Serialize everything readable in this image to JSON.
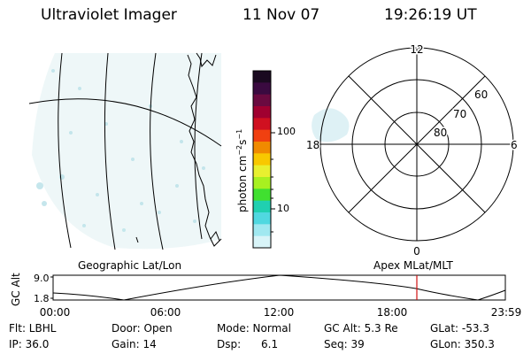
{
  "header": {
    "title": "Ultraviolet Imager",
    "date": "11 Nov 07",
    "time": "19:26:19 UT"
  },
  "colorbar": {
    "label": "photon cm",
    "label_sup1": "−2",
    "label_mid": "s",
    "label_sup2": "−1",
    "ticks": [
      "100",
      "10"
    ],
    "colors": [
      "#1a0a20",
      "#3a0a40",
      "#6a0a40",
      "#a00030",
      "#d01020",
      "#f04010",
      "#f08a00",
      "#f8c800",
      "#e8f030",
      "#a8f020",
      "#40e030",
      "#20d0b0",
      "#50d8e0",
      "#a0e8f0",
      "#d8f4f8"
    ]
  },
  "map_left": {
    "caption": "Geographic Lat/Lon"
  },
  "polar_right": {
    "caption": "Apex  MLat/MLT",
    "mlt_labels": {
      "top": "12",
      "left": "18",
      "right": "6",
      "bottom": "0"
    },
    "lat_labels": [
      "60",
      "70",
      "80"
    ]
  },
  "orbit_plot": {
    "ylabel": "GC Alt",
    "y_ticks": [
      "9.0",
      "1.8"
    ],
    "x_ticks": [
      "00:00",
      "06:00",
      "12:00",
      "18:00",
      "23:59"
    ],
    "marker_color": "#d01010"
  },
  "info": {
    "flt": "Flt: LBHL",
    "door": "Door: Open",
    "mode": "Mode: Normal",
    "gcalt": "GC Alt: 5.3 Re",
    "glat": "GLat: -53.3",
    "ip": "IP: 36.0",
    "gain": "Gain: 14",
    "dsp": "Dsp:      6.1",
    "seq": "Seq: 39",
    "glon": "GLon: 350.3"
  }
}
